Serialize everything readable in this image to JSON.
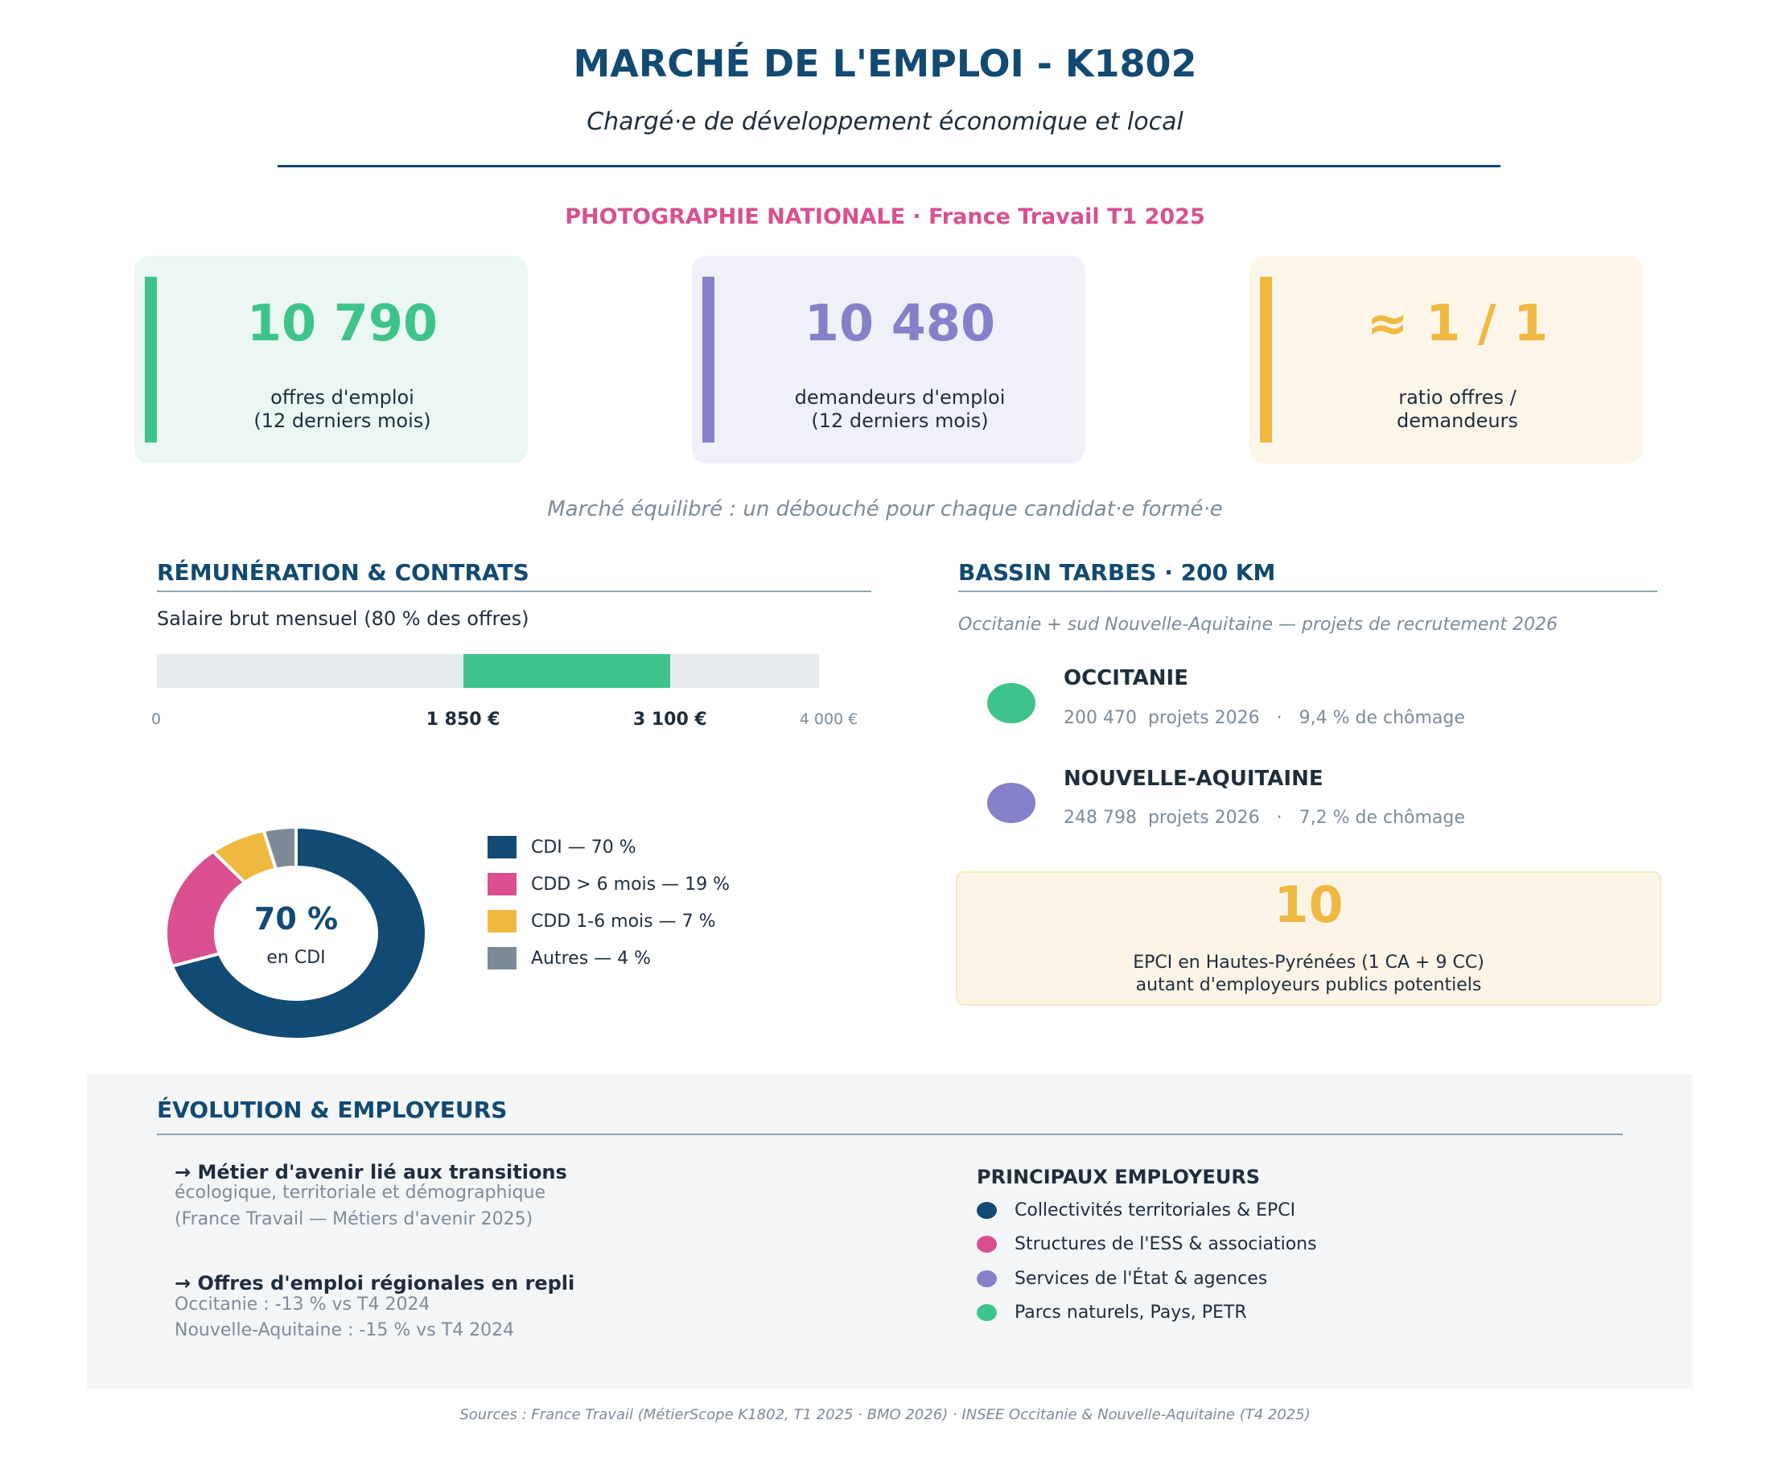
{
  "header": {
    "title": "MARCHÉ DE L'EMPLOI - K1802",
    "subtitle": "Chargé·e de développement économique et local",
    "kicker": "PHOTOGRAPHIE NATIONALE  ·  France Travail T1 2025"
  },
  "kpis": [
    {
      "value": "10 790",
      "label_line1": "offres d'emploi",
      "label_line2": "(12 derniers mois)",
      "color": "#3ec48a",
      "bg": "#eaf7f2"
    },
    {
      "value": "10 480",
      "label_line1": "demandeurs d'emploi",
      "label_line2": "(12 derniers mois)",
      "color": "#8480c9",
      "bg": "#f0f0f9"
    },
    {
      "value": "≈ 1 / 1",
      "label_line1": "ratio offres /",
      "label_line2": "demandeurs",
      "color": "#efb941",
      "bg": "#fcf6e9"
    }
  ],
  "tagline": "Marché équilibré : un débouché pour chaque candidat·e formé·e",
  "remuneration": {
    "heading": "RÉMUNÉRATION & CONTRATS",
    "salary_caption": "Salaire brut mensuel (80 % des offres)",
    "range": {
      "min": 0,
      "max": 4000,
      "low": 1850,
      "high": 3100
    },
    "ticks": {
      "zero": "0",
      "low": "1 850 €",
      "high": "3 100 €",
      "max": "4 000 €"
    }
  },
  "contracts": {
    "center_value": "70 %",
    "center_label": "en CDI",
    "slices": [
      {
        "label": "CDI — 70 %",
        "value": 70,
        "color": "#114a72"
      },
      {
        "label": "CDD > 6 mois — 19 %",
        "value": 19,
        "color": "#d94f8f"
      },
      {
        "label": "CDD 1-6 mois — 7 %",
        "value": 7,
        "color": "#efb941"
      },
      {
        "label": "Autres — 4 %",
        "value": 4,
        "color": "#7d8b99"
      }
    ]
  },
  "bassin": {
    "heading": "BASSIN TARBES · 200 KM",
    "caption": "Occitanie + sud Nouvelle-Aquitaine — projets de recrutement 2026",
    "regions": [
      {
        "name": "OCCITANIE",
        "meta": "200 470  projets 2026   ·   9,4 % de chômage",
        "color": "#3ec48a"
      },
      {
        "name": "NOUVELLE-AQUITAINE",
        "meta": "248 798  projets 2026   ·   7,2 % de chômage",
        "color": "#8480c9"
      }
    ],
    "epci": {
      "value": "10",
      "line1": "EPCI en Hautes-Pyrénées (1 CA + 9 CC)",
      "line2": "autant d'employeurs publics potentiels"
    }
  },
  "evolution": {
    "heading": "ÉVOLUTION & EMPLOYEURS",
    "trends": [
      {
        "title": "→ Métier d'avenir lié aux transitions",
        "line1": "écologique, territoriale et démographique",
        "line2": "(France Travail — Métiers d'avenir 2025)"
      },
      {
        "title": "→ Offres d'emploi régionales en repli",
        "line1": "Occitanie : -13 % vs T4 2024",
        "line2": "Nouvelle-Aquitaine : -15 % vs T4 2024"
      }
    ],
    "employers_heading": "PRINCIPAUX EMPLOYEURS",
    "employers": [
      {
        "label": "Collectivités territoriales & EPCI",
        "color": "#114a72"
      },
      {
        "label": "Structures de l'ESS & associations",
        "color": "#d94f8f"
      },
      {
        "label": "Services de l'État & agences",
        "color": "#8480c9"
      },
      {
        "label": "Parcs naturels, Pays, PETR",
        "color": "#3ec48a"
      }
    ]
  },
  "sources": "Sources : France Travail (MétierScope K1802, T1 2025  ·  BMO 2026)  ·  INSEE Occitanie & Nouvelle-Aquitaine (T4 2025)"
}
